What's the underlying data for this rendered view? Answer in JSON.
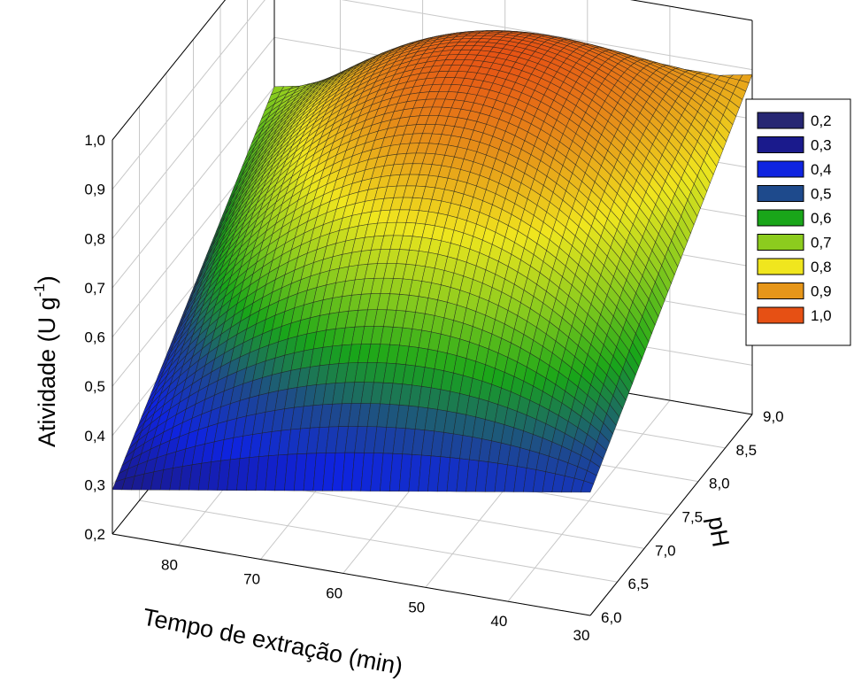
{
  "chart_data": {
    "type": "surface3d",
    "title": "",
    "xlabel": "Tempo de extração (min)",
    "ylabel": "pH",
    "zlabel": "Atividade (U g",
    "zlabel_sup": "-1",
    "zlabel_close": ")",
    "x_ticks": [
      "80",
      "70",
      "60",
      "50",
      "40",
      "30"
    ],
    "x_tick_values": [
      80,
      70,
      60,
      50,
      40,
      30
    ],
    "xlim": [
      30,
      88
    ],
    "y_ticks": [
      "6,0",
      "6,5",
      "7,0",
      "7,5",
      "8,0",
      "8,5",
      "9,0"
    ],
    "y_tick_values": [
      6.0,
      6.5,
      7.0,
      7.5,
      8.0,
      8.5,
      9.0
    ],
    "ylim": [
      6.0,
      9.0
    ],
    "z_ticks": [
      "0,2",
      "0,3",
      "0,4",
      "0,5",
      "0,6",
      "0,7",
      "0,8",
      "0,9",
      "1,0"
    ],
    "z_tick_values": [
      0.2,
      0.3,
      0.4,
      0.5,
      0.6,
      0.7,
      0.8,
      0.9,
      1.0
    ],
    "zlim": [
      0.2,
      1.0
    ],
    "surface_corners": [
      {
        "tempo": 88,
        "pH": 6.0,
        "atividade": 0.29
      },
      {
        "tempo": 30,
        "pH": 6.0,
        "atividade": 0.45
      },
      {
        "tempo": 88,
        "pH": 9.0,
        "atividade": 0.7
      },
      {
        "tempo": 30,
        "pH": 9.0,
        "atividade": 0.89
      }
    ],
    "surface_peak": {
      "tempo": 58,
      "pH": 8.2,
      "atividade": 0.99
    },
    "legend": {
      "placement": "right",
      "entries": [
        {
          "label": "0,2",
          "color": "#262673"
        },
        {
          "label": "0,3",
          "color": "#1a1a8c"
        },
        {
          "label": "0,4",
          "color": "#0f24e0"
        },
        {
          "label": "0,5",
          "color": "#1e4a8c"
        },
        {
          "label": "0,6",
          "color": "#19a619"
        },
        {
          "label": "0,7",
          "color": "#8ccc1e"
        },
        {
          "label": "0,8",
          "color": "#f0e61e"
        },
        {
          "label": "0,9",
          "color": "#e69619"
        },
        {
          "label": "1,0",
          "color": "#e65014"
        }
      ]
    },
    "grid": true
  }
}
